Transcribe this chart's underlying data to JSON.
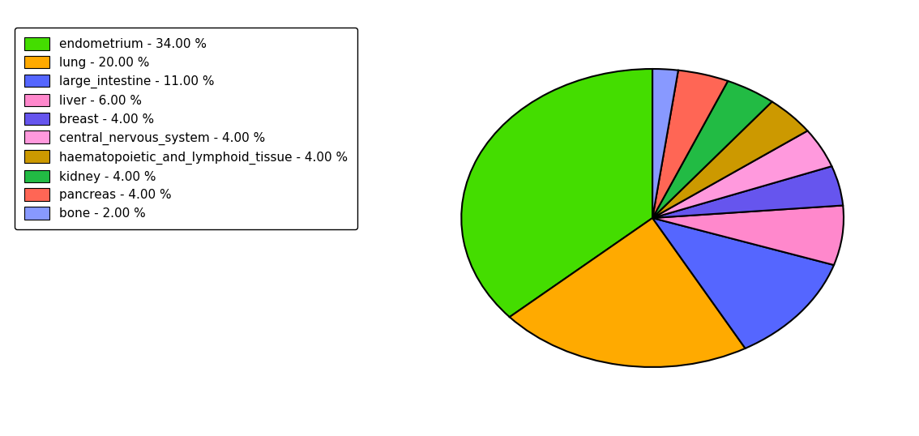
{
  "labels": [
    "endometrium",
    "lung",
    "large_intestine",
    "liver",
    "breast",
    "central_nervous_system",
    "haematopoietic_and_lymphoid_tissue",
    "kidney",
    "pancreas",
    "bone"
  ],
  "values": [
    34.0,
    20.0,
    11.0,
    6.0,
    4.0,
    4.0,
    4.0,
    4.0,
    4.0,
    2.0
  ],
  "colors": [
    "#44dd00",
    "#ffaa00",
    "#5566ff",
    "#ff88cc",
    "#6655ee",
    "#ff99dd",
    "#cc9900",
    "#22bb44",
    "#ff6655",
    "#8899ff"
  ],
  "legend_labels": [
    "endometrium - 34.00 %",
    "lung - 20.00 %",
    "large_intestine - 11.00 %",
    "liver - 6.00 %",
    "breast - 4.00 %",
    "central_nervous_system - 4.00 %",
    "haematopoietic_and_lymphoid_tissue - 4.00 %",
    "kidney - 4.00 %",
    "pancreas - 4.00 %",
    "bone - 2.00 %"
  ],
  "startangle": 90,
  "figsize": [
    11.34,
    5.38
  ],
  "dpi": 100,
  "background_color": "#ffffff"
}
